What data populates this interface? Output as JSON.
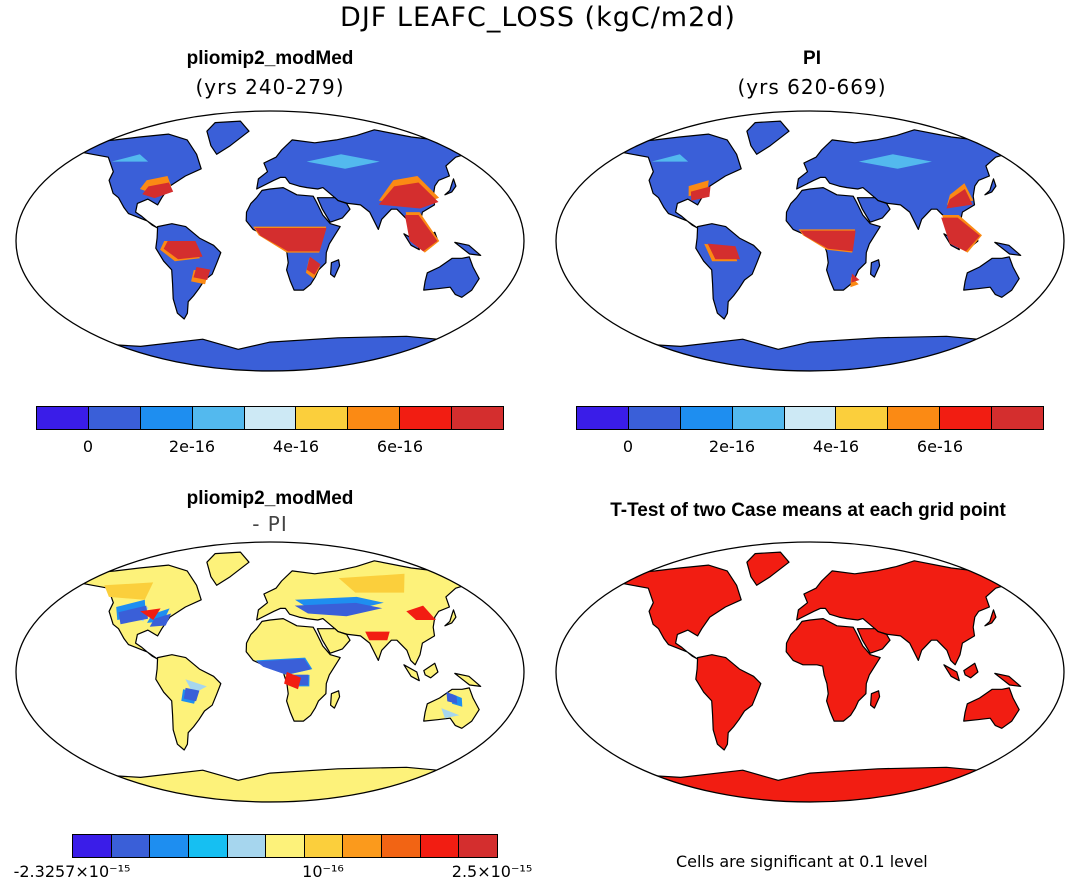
{
  "title": "DJF LEAFC_LOSS (kgC/m2d)",
  "panels": [
    {
      "title": "pliomip2_modMed",
      "subtitle": "(yrs 240-279)"
    },
    {
      "title": "PI",
      "subtitle": "(yrs 620-669)"
    },
    {
      "title": "pliomip2_modMed",
      "subtitle": "- PI"
    },
    {
      "title": "T-Test of two Case means at each grid point",
      "subtitle": ""
    }
  ],
  "colorbar_top": {
    "colors": [
      "#3a1de8",
      "#3a5fd8",
      "#1e8ef0",
      "#53b9ee",
      "#cde9f5",
      "#fbcf3c",
      "#fb8a14",
      "#f21d12",
      "#d42e2e"
    ],
    "labels": [
      "0",
      "2e-16",
      "4e-16",
      "6e-16"
    ]
  },
  "colorbar_diff": {
    "colors": [
      "#3a1de8",
      "#3a5fd8",
      "#1e8ef0",
      "#16bff2",
      "#a6d6ee",
      "#fdf27a",
      "#fbcf3c",
      "#fb9a1c",
      "#f26414",
      "#f21d12",
      "#d42e2e"
    ],
    "labels": [
      "-2.3257×10⁻¹⁵",
      "10⁻¹⁶",
      "2.5×10⁻¹⁵"
    ]
  },
  "ttest_note": "Cells are significant at 0.1 level",
  "colors": {
    "land_base": "#3a5fd8",
    "diff_base": "#fdf27a",
    "significant": "#f21d12",
    "ocean": "#ffffff"
  }
}
